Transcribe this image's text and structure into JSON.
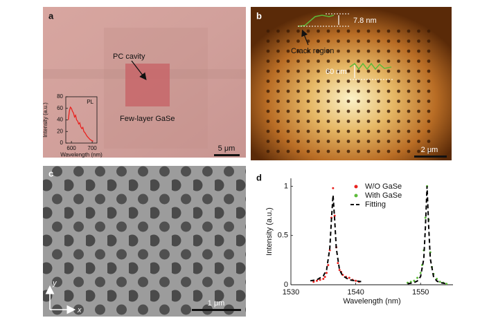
{
  "panels": {
    "a": {
      "label": "a",
      "annotations": [
        "PC cavity",
        "Few-layer GaSe"
      ],
      "scalebar": "5 μm",
      "inset": {
        "type": "line",
        "title": "PL",
        "ylabel": "Intensity (a.u.)",
        "xlabel": "Wavelength (nm)",
        "xlim": [
          573,
          723
        ],
        "xticks": [
          600,
          700
        ],
        "ylim": [
          0,
          80
        ],
        "yticks": [
          0,
          20,
          40,
          60,
          80
        ],
        "color": "#e8221f",
        "x": [
          585,
          590,
          595,
          600,
          605,
          610,
          615,
          620,
          625,
          630,
          635,
          640,
          645,
          650,
          655,
          660,
          665,
          670,
          675,
          680,
          685,
          690,
          695,
          700,
          705
        ],
        "values": [
          40,
          55,
          62,
          60,
          55,
          52,
          45,
          48,
          40,
          38,
          33,
          35,
          28,
          25,
          27,
          20,
          18,
          15,
          12,
          10,
          8,
          6,
          5,
          4,
          3
        ]
      }
    },
    "b": {
      "label": "b",
      "annotations": [
        "7.8 nm",
        "Crack region",
        "60 nm"
      ],
      "scalebar": "2 μm"
    },
    "c": {
      "label": "c",
      "axis_labels": [
        "y",
        "x"
      ],
      "scalebar": "1 μm"
    },
    "d": {
      "label": "d",
      "chart": {
        "type": "scatter",
        "xlabel": "Wavelength (nm)",
        "ylabel": "Intensity (a.u.)",
        "xlim": [
          1530,
          1555
        ],
        "xticks": [
          1530,
          1540,
          1550
        ],
        "ylim": [
          0,
          1.08
        ],
        "yticks": [
          0,
          0.5,
          1
        ],
        "series": [
          {
            "name": "W/O GaSe",
            "color": "#e8221f",
            "style": "dots",
            "x": [
              1533.5,
              1534,
              1534.5,
              1535,
              1535.25,
              1535.5,
              1535.75,
              1536,
              1536.25,
              1536.5,
              1536.75,
              1537,
              1537.25,
              1537.5,
              1537.75,
              1538,
              1538.5,
              1539,
              1539.5,
              1540,
              1540.5
            ],
            "values": [
              0.03,
              0.04,
              0.05,
              0.06,
              0.08,
              0.12,
              0.2,
              0.35,
              0.68,
              0.98,
              0.7,
              0.38,
              0.22,
              0.15,
              0.13,
              0.1,
              0.08,
              0.07,
              0.05,
              0.04,
              0.03
            ]
          },
          {
            "name": "With GaSe",
            "color": "#5dbb3a",
            "style": "dots",
            "x": [
              1548,
              1548.5,
              1549,
              1549.5,
              1550,
              1550.25,
              1550.5,
              1550.75,
              1551,
              1551.25,
              1551.5,
              1551.75,
              1552,
              1552.5,
              1553,
              1553.5,
              1554
            ],
            "values": [
              0.02,
              0.03,
              0.04,
              0.07,
              0.12,
              0.2,
              0.35,
              0.68,
              1.0,
              0.66,
              0.33,
              0.18,
              0.11,
              0.06,
              0.03,
              0.02,
              0.01
            ]
          },
          {
            "name": "Fitting",
            "color": "#000000",
            "style": "dashed",
            "x": [
              1533,
              1534,
              1535,
              1535.5,
              1536,
              1536.25,
              1536.5,
              1536.75,
              1537,
              1537.5,
              1538,
              1539,
              1540,
              1541,
              1544,
              1548,
              1549,
              1549.5,
              1550,
              1550.5,
              1550.75,
              1551,
              1551.25,
              1551.5,
              1552,
              1552.5,
              1553,
              1554
            ],
            "values": [
              0.04,
              0.05,
              0.09,
              0.15,
              0.37,
              0.66,
              0.91,
              0.66,
              0.37,
              0.15,
              0.09,
              0.05,
              0.04,
              0.03,
              null,
              0.01,
              0.022,
              0.038,
              0.083,
              0.265,
              0.59,
              1.0,
              0.59,
              0.265,
              0.083,
              0.038,
              0.022,
              0.01
            ]
          }
        ]
      }
    }
  }
}
